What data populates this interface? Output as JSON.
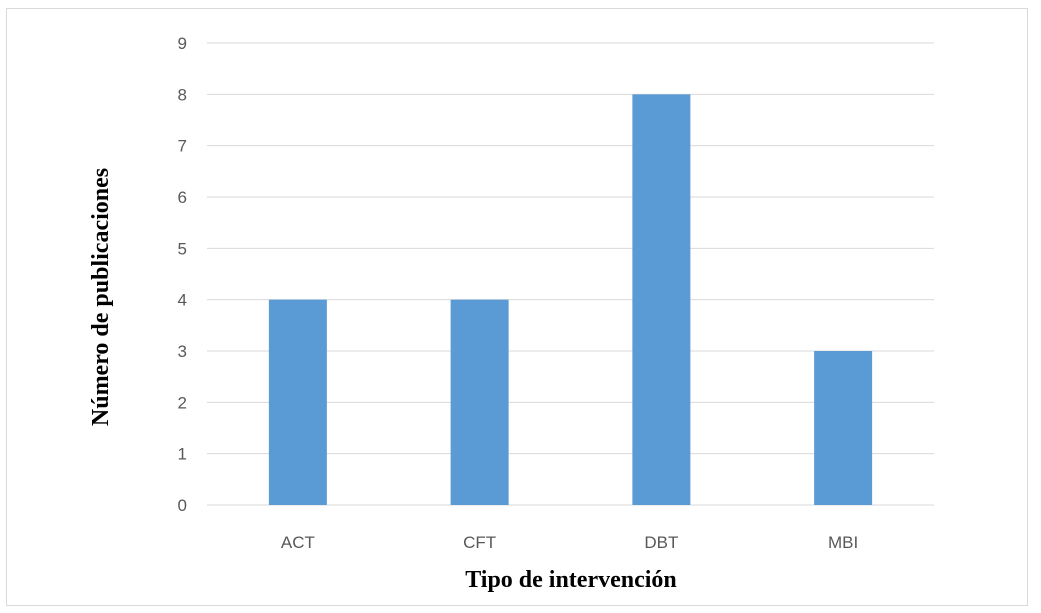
{
  "chart_data": {
    "type": "bar",
    "categories": [
      "ACT",
      "CFT",
      "DBT",
      "MBI"
    ],
    "values": [
      4,
      4,
      8,
      3
    ],
    "title": "",
    "xlabel": "Tipo de intervención",
    "ylabel": "Número de publicaciones",
    "ylim": [
      0,
      9
    ],
    "yticks": [
      "0",
      "1",
      "2",
      "3",
      "4",
      "5",
      "6",
      "7",
      "8",
      "9"
    ],
    "grid": "horizontal",
    "legend": "none",
    "colors": {
      "bar": "#5b9bd5",
      "grid": "#d9d9d9",
      "tick_text": "#595959"
    }
  }
}
